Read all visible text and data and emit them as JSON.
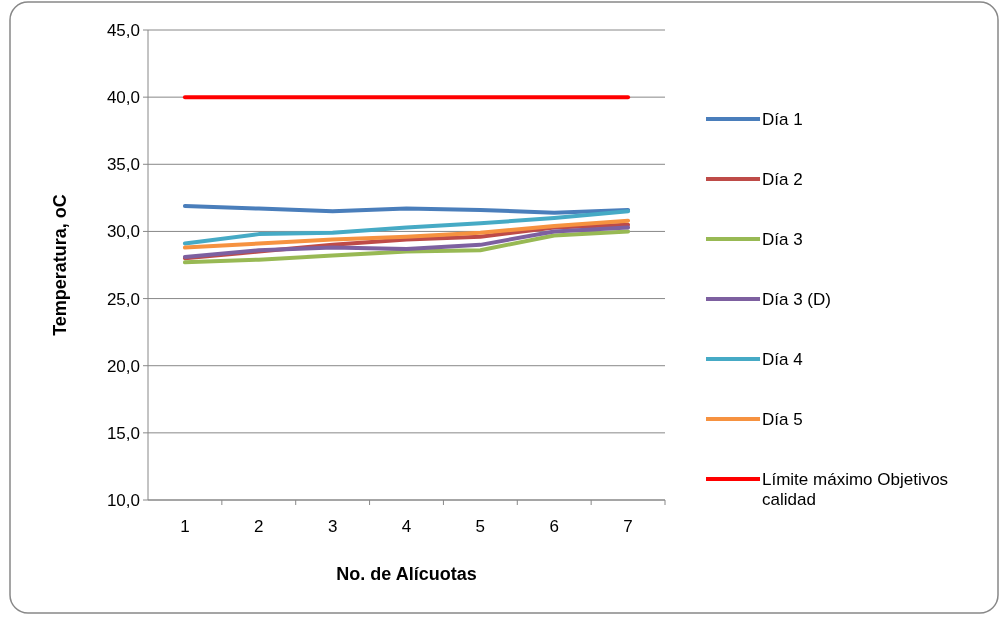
{
  "chart_data": {
    "type": "line",
    "xlabel": "No.  de Alícuotas",
    "ylabel": "Temperatura, oC",
    "categories": [
      "1",
      "2",
      "3",
      "4",
      "5",
      "6",
      "7"
    ],
    "series": [
      {
        "name": "Día 1",
        "color": "#4a7ebb",
        "values": [
          31.9,
          31.7,
          31.5,
          31.7,
          31.6,
          31.4,
          31.6
        ]
      },
      {
        "name": "Día 2",
        "color": "#be4b48",
        "values": [
          28.0,
          28.5,
          29.0,
          29.4,
          29.6,
          30.3,
          30.5
        ]
      },
      {
        "name": "Día 3",
        "color": "#98b954",
        "values": [
          27.7,
          27.9,
          28.2,
          28.5,
          28.6,
          29.7,
          30.0
        ]
      },
      {
        "name": "Día 3 (D)",
        "color": "#7d60a0",
        "values": [
          28.1,
          28.6,
          28.8,
          28.7,
          29.0,
          30.0,
          30.3
        ]
      },
      {
        "name": "Día 4",
        "color": "#46aac5",
        "values": [
          29.1,
          29.8,
          29.9,
          30.3,
          30.6,
          31.0,
          31.5
        ]
      },
      {
        "name": "Día 5",
        "color": "#f69240",
        "values": [
          28.8,
          29.1,
          29.4,
          29.6,
          29.9,
          30.4,
          30.8
        ]
      },
      {
        "name": "Límite máximo Objetivos calidad",
        "color": "#ff0000",
        "values": [
          40,
          40,
          40,
          40,
          40,
          40,
          40
        ]
      }
    ],
    "ylim": [
      10,
      45
    ],
    "yticks": [
      {
        "value": 10,
        "label": "10,0"
      },
      {
        "value": 15,
        "label": "15,0"
      },
      {
        "value": 20,
        "label": "20,0"
      },
      {
        "value": 25,
        "label": "25,0"
      },
      {
        "value": 30,
        "label": "30,0"
      },
      {
        "value": 35,
        "label": "35,0"
      },
      {
        "value": 40,
        "label": "40,0"
      },
      {
        "value": 45,
        "label": "45,0"
      }
    ],
    "grid": "y",
    "legend": "right",
    "line_style": "solid"
  }
}
